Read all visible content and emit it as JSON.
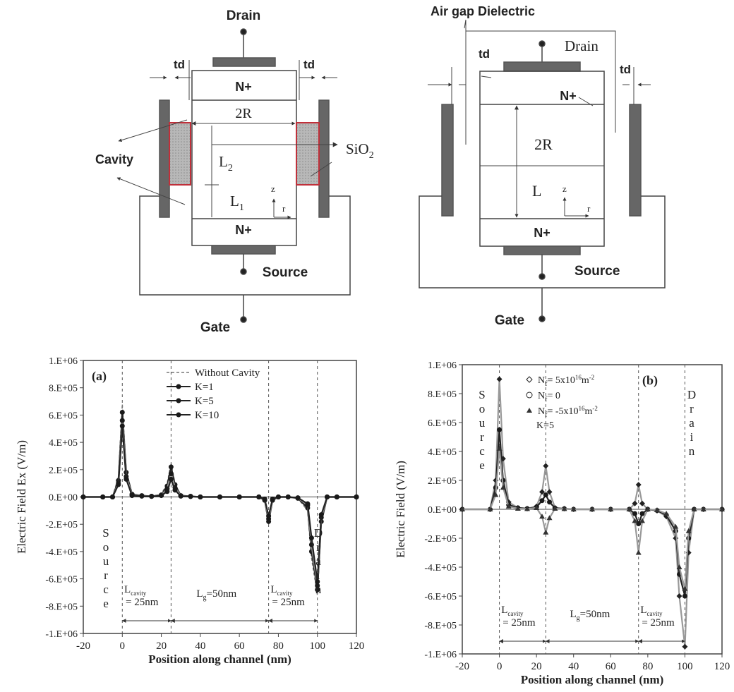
{
  "diagram_left": {
    "drain": "Drain",
    "source": "Source",
    "gate": "Gate",
    "td_left": "td",
    "td_right": "td",
    "n_top": "N+",
    "n_bottom": "N+",
    "two_r": "2R",
    "cavity": "Cavity",
    "sio2": "SiO",
    "sio2_sub": "2",
    "l2": "L",
    "l2_sub": "2",
    "l1": "L",
    "l1_sub": "1",
    "z": "z",
    "r": "r"
  },
  "diagram_right": {
    "air_gap": "Air gap Dielectric",
    "drain": "Drain",
    "source": "Source",
    "gate": "Gate",
    "td_left": "td",
    "td_right": "td",
    "n_top": "N+",
    "n_bottom": "N+",
    "two_r": "2R",
    "l": "L",
    "z": "z",
    "r": "r"
  },
  "chart_data": [
    {
      "type": "line",
      "panel_label": "(a)",
      "xlabel": "Position along channel (nm)",
      "ylabel": "Electric Field Ex (V/m)",
      "xlim": [
        -20,
        120
      ],
      "ylim": [
        -1000000,
        1000000
      ],
      "xticks": [
        "-20",
        "0",
        "20",
        "40",
        "60",
        "80",
        "100",
        "120"
      ],
      "yticks": [
        "-1.E+06",
        "-8.E+05",
        "-6.E+05",
        "-4.E+05",
        "-2.E+05",
        "0.E+00",
        "2.E+05",
        "4.E+05",
        "6.E+05",
        "8.E+05",
        "1.E+06"
      ],
      "grid": false,
      "legend_position": "top-right",
      "x": [
        -20,
        -10,
        -5,
        -2,
        0,
        2,
        5,
        10,
        15,
        20,
        23,
        25,
        27,
        30,
        35,
        40,
        50,
        60,
        70,
        73,
        75,
        77,
        80,
        85,
        90,
        95,
        97,
        100,
        102,
        105,
        110,
        120
      ],
      "series": [
        {
          "name": "Without Cavity",
          "style": "dashed",
          "values": [
            0,
            0,
            0,
            150000,
            680000,
            200000,
            20000,
            10000,
            5000,
            20000,
            100000,
            250000,
            100000,
            10000,
            5000,
            0,
            0,
            0,
            0,
            -30000,
            -200000,
            -30000,
            0,
            0,
            -10000,
            -100000,
            -450000,
            -720000,
            -200000,
            0,
            0,
            0
          ]
        },
        {
          "name": "K=1",
          "style": "line-circle",
          "values": [
            0,
            0,
            0,
            120000,
            620000,
            180000,
            20000,
            10000,
            5000,
            15000,
            80000,
            220000,
            90000,
            10000,
            5000,
            0,
            0,
            0,
            0,
            -25000,
            -180000,
            -25000,
            0,
            0,
            -10000,
            -80000,
            -400000,
            -680000,
            -180000,
            0,
            0,
            0
          ]
        },
        {
          "name": "K=5",
          "style": "line-circle",
          "values": [
            0,
            0,
            0,
            100000,
            560000,
            150000,
            15000,
            8000,
            5000,
            12000,
            60000,
            170000,
            70000,
            8000,
            4000,
            0,
            0,
            0,
            0,
            -20000,
            -160000,
            -20000,
            0,
            0,
            -8000,
            -60000,
            -350000,
            -650000,
            -150000,
            0,
            0,
            0
          ]
        },
        {
          "name": "K=10",
          "style": "line-circle",
          "values": [
            0,
            0,
            0,
            90000,
            520000,
            130000,
            10000,
            6000,
            4000,
            10000,
            40000,
            130000,
            50000,
            6000,
            3000,
            0,
            0,
            0,
            0,
            -15000,
            -140000,
            -15000,
            0,
            0,
            -6000,
            -50000,
            -300000,
            -620000,
            -130000,
            0,
            0,
            0
          ]
        }
      ],
      "annotations": {
        "source": [
          "S",
          "o",
          "u",
          "r",
          "c",
          "e"
        ],
        "drain": [
          "D",
          "r",
          "a",
          "i",
          "n"
        ],
        "l_cavity_1": "L",
        "l_cavity_1_sub": "cavity",
        "l_cavity_1_val": "= 25nm",
        "lg": "L",
        "lg_sub": "g",
        "lg_val": "=50nm",
        "l_cavity_2": "L",
        "l_cavity_2_sub": "cavity",
        "l_cavity_2_val": "= 25nm"
      }
    },
    {
      "type": "line",
      "panel_label": "(b)",
      "xlabel": "Position along channel (nm)",
      "ylabel": "Electric Field (V/m)",
      "xlim": [
        -20,
        120
      ],
      "ylim": [
        -1000000,
        1000000
      ],
      "xticks": [
        "-20",
        "0",
        "20",
        "40",
        "60",
        "80",
        "100",
        "120"
      ],
      "yticks": [
        "-1.E+06",
        "-8.E+05",
        "-6.E+05",
        "-4.E+05",
        "-2.E+05",
        "0.E+00",
        "2.E+05",
        "4.E+05",
        "6.E+05",
        "8.E+05",
        "1.E+06"
      ],
      "grid": false,
      "legend_position": "top-left",
      "x": [
        -20,
        -5,
        -2,
        0,
        2,
        5,
        10,
        15,
        20,
        23,
        25,
        27,
        30,
        35,
        40,
        50,
        60,
        70,
        73,
        75,
        77,
        80,
        85,
        90,
        95,
        97,
        100,
        102,
        105,
        110,
        120
      ],
      "series": [
        {
          "name": "N",
          "name_sub": "f",
          "name_val": "= 5x10",
          "name_exp": "16",
          "name_unit": "m",
          "name_unit_exp": "-2",
          "marker": "diamond",
          "values": [
            0,
            0,
            200000,
            900000,
            350000,
            50000,
            10000,
            5000,
            20000,
            120000,
            300000,
            120000,
            10000,
            5000,
            0,
            0,
            0,
            0,
            40000,
            170000,
            40000,
            0,
            -10000,
            -50000,
            -200000,
            -600000,
            -950000,
            -300000,
            0,
            0,
            0
          ]
        },
        {
          "name": "N",
          "name_sub": "f",
          "name_val": "= 0",
          "name_exp": "",
          "name_unit": "",
          "name_unit_exp": "",
          "marker": "circle",
          "values": [
            0,
            0,
            150000,
            550000,
            200000,
            30000,
            10000,
            5000,
            15000,
            60000,
            100000,
            50000,
            8000,
            4000,
            0,
            0,
            0,
            0,
            -30000,
            -100000,
            -30000,
            0,
            -8000,
            -40000,
            -150000,
            -450000,
            -600000,
            -200000,
            0,
            0,
            0
          ]
        },
        {
          "name": "N",
          "name_sub": "f",
          "name_val": "= -5x10",
          "name_exp": "16",
          "name_unit": "m",
          "name_unit_exp": "-2",
          "marker": "triangle",
          "values": [
            0,
            0,
            100000,
            420000,
            150000,
            20000,
            5000,
            3000,
            10000,
            -50000,
            -160000,
            -60000,
            5000,
            3000,
            0,
            0,
            0,
            0,
            -80000,
            -300000,
            -80000,
            0,
            -5000,
            -30000,
            -120000,
            -400000,
            -550000,
            -150000,
            0,
            0,
            0
          ]
        }
      ],
      "legend_extra": "K=5",
      "annotations": {
        "source": [
          "S",
          "o",
          "u",
          "r",
          "c",
          "e"
        ],
        "drain": [
          "D",
          "r",
          "a",
          "i",
          "n"
        ],
        "l_cavity_1": "L",
        "l_cavity_1_sub": "cavity",
        "l_cavity_1_val": "= 25nm",
        "lg": "L",
        "lg_sub": "g",
        "lg_val": "=50nm",
        "l_cavity_2": "L",
        "l_cavity_2_sub": "cavity",
        "l_cavity_2_val": "= 25nm"
      }
    }
  ]
}
